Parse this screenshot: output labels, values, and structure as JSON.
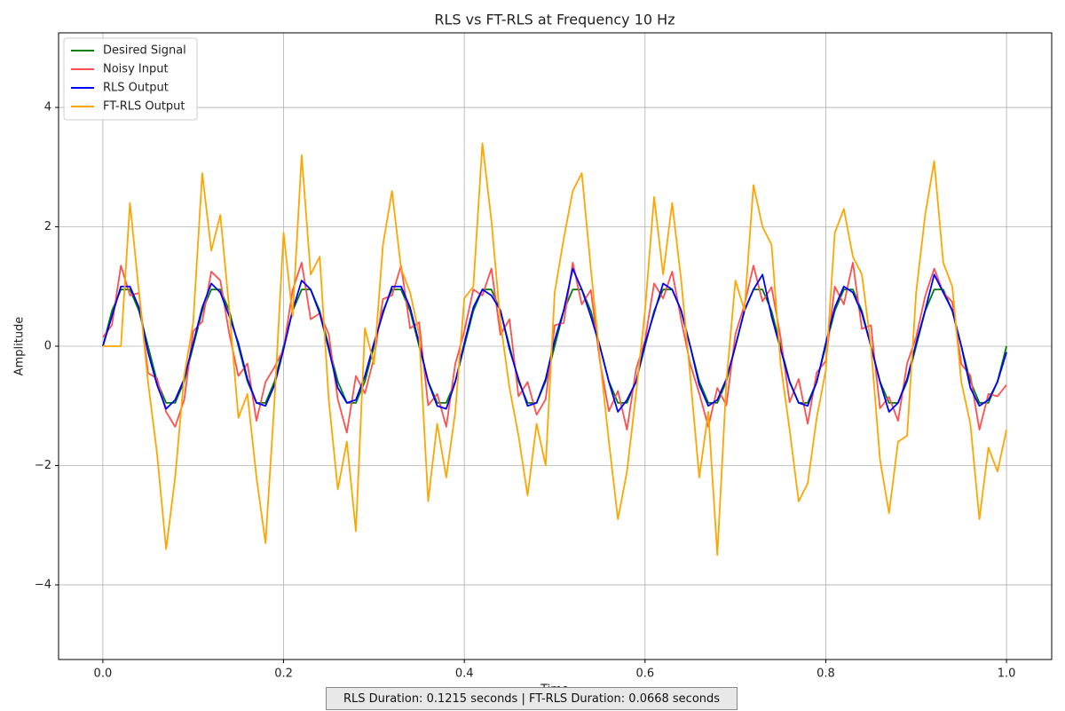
{
  "chart_data": {
    "type": "line",
    "title": "RLS vs FT-RLS at Frequency 10 Hz",
    "x_label": "Time",
    "y_label": "Amplitude",
    "annotation": "RLS Duration: 0.1215 seconds | FT-RLS Duration: 0.0668 seconds",
    "xlim": [
      -0.049,
      1.05
    ],
    "ylim": [
      -5.25,
      5.25
    ],
    "xticks": [
      {
        "value": 0,
        "label": "0.0"
      },
      0.2,
      0.4,
      0.6,
      0.8,
      {
        "value": 1,
        "label": "1.0"
      }
    ],
    "yticks": [
      {
        "value": -4,
        "label": "−4"
      },
      {
        "value": -2,
        "label": "−2"
      },
      0,
      2,
      4
    ],
    "grid": true,
    "legend": "upper left",
    "x": [
      0,
      0.01,
      0.02,
      0.03,
      0.04,
      0.05,
      0.06,
      0.07,
      0.08,
      0.09,
      0.1,
      0.11,
      0.12,
      0.13,
      0.14,
      0.15,
      0.16,
      0.17,
      0.18,
      0.19,
      0.2,
      0.21,
      0.22,
      0.23,
      0.24,
      0.25,
      0.26,
      0.27,
      0.28,
      0.29,
      0.3,
      0.31,
      0.32,
      0.33,
      0.34,
      0.35,
      0.36,
      0.37,
      0.38,
      0.39,
      0.4,
      0.41,
      0.42,
      0.43,
      0.44,
      0.45,
      0.46,
      0.47,
      0.48,
      0.49,
      0.5,
      0.51,
      0.52,
      0.53,
      0.54,
      0.55,
      0.56,
      0.57,
      0.58,
      0.59,
      0.6,
      0.61,
      0.62,
      0.63,
      0.64,
      0.65,
      0.66,
      0.67,
      0.68,
      0.69,
      0.7,
      0.71,
      0.72,
      0.73,
      0.74,
      0.75,
      0.76,
      0.77,
      0.78,
      0.79,
      0.8,
      0.81,
      0.82,
      0.83,
      0.84,
      0.85,
      0.86,
      0.87,
      0.88,
      0.89,
      0.9,
      0.91,
      0.92,
      0.93,
      0.94,
      0.95,
      0.96,
      0.97,
      0.98,
      0.99,
      1
    ],
    "series": [
      {
        "name": "Desired Signal",
        "color": "#008000",
        "values": [
          0,
          0.59,
          0.95,
          0.95,
          0.59,
          0,
          -0.59,
          -0.95,
          -0.95,
          -0.59,
          0,
          0.59,
          0.95,
          0.95,
          0.59,
          0,
          -0.59,
          -0.95,
          -0.95,
          -0.59,
          0,
          0.59,
          0.95,
          0.95,
          0.59,
          0,
          -0.59,
          -0.95,
          -0.95,
          -0.59,
          0,
          0.59,
          0.95,
          0.95,
          0.59,
          0,
          -0.59,
          -0.95,
          -0.95,
          -0.59,
          0,
          0.59,
          0.95,
          0.95,
          0.59,
          0,
          -0.59,
          -0.95,
          -0.95,
          -0.59,
          0,
          0.59,
          0.95,
          0.95,
          0.59,
          0,
          -0.59,
          -0.95,
          -0.95,
          -0.59,
          0,
          0.59,
          0.95,
          0.95,
          0.59,
          0,
          -0.59,
          -0.95,
          -0.95,
          -0.59,
          0,
          0.59,
          0.95,
          0.95,
          0.59,
          0,
          -0.59,
          -0.95,
          -0.95,
          -0.59,
          0,
          0.59,
          0.95,
          0.95,
          0.59,
          0,
          -0.59,
          -0.95,
          -0.95,
          -0.59,
          0,
          0.59,
          0.95,
          0.95,
          0.59,
          0,
          -0.59,
          -0.95,
          -0.95,
          -0.59,
          0
        ]
      },
      {
        "name": "Noisy Input",
        "color": "#ff4f4f",
        "values": [
          0.15,
          0.35,
          1.35,
          0.85,
          0.89,
          -0.45,
          -0.54,
          -1.1,
          -1.35,
          -0.9,
          0.25,
          0.41,
          1.25,
          1.1,
          0.2,
          -0.5,
          -0.29,
          -1.25,
          -0.6,
          -0.35,
          -0.05,
          0.94,
          1.4,
          0.45,
          0.55,
          0.2,
          -0.89,
          -1.45,
          -0.5,
          -0.79,
          -0.2,
          0.79,
          0.85,
          1.35,
          0.3,
          0.4,
          -0.99,
          -0.8,
          -1.35,
          -0.3,
          0.25,
          0.95,
          0.85,
          1.3,
          0.19,
          0.45,
          -0.84,
          -0.6,
          -1.15,
          -0.89,
          0.35,
          0.39,
          1.4,
          0.7,
          0.94,
          -0.25,
          -1.09,
          -0.75,
          -1.4,
          -0.39,
          0.1,
          1.05,
          0.8,
          1.25,
          0.44,
          -0.3,
          -0.79,
          -1.35,
          -0.7,
          -0.99,
          0.2,
          0.69,
          1.35,
          0.75,
          0.99,
          0.15,
          -0.94,
          -0.55,
          -1.3,
          -0.44,
          -0.25,
          1.0,
          0.7,
          1.4,
          0.29,
          0.35,
          -1.04,
          -0.85,
          -1.25,
          -0.29,
          0.15,
          0.84,
          1.3,
          0.9,
          0.74,
          -0.3,
          -0.49,
          -1.4,
          -0.8,
          -0.84,
          -0.65
        ]
      },
      {
        "name": "RLS Output",
        "color": "#0000ff",
        "values": [
          0,
          0.5,
          1.0,
          1.0,
          0.65,
          -0.1,
          -0.65,
          -1.05,
          -0.9,
          -0.55,
          0.05,
          0.65,
          1.05,
          0.9,
          0.5,
          0.05,
          -0.55,
          -0.95,
          -1.0,
          -0.65,
          -0.05,
          0.6,
          1.1,
          0.95,
          0.55,
          -0.05,
          -0.7,
          -0.95,
          -0.9,
          -0.5,
          0.05,
          0.55,
          1.0,
          1.0,
          0.65,
          0.05,
          -0.6,
          -1.0,
          -1.05,
          -0.6,
          0.05,
          0.65,
          0.95,
          0.85,
          0.6,
          -0.05,
          -0.55,
          -1.0,
          -0.95,
          -0.55,
          0.1,
          0.6,
          1.3,
          0.95,
          0.5,
          0,
          -0.6,
          -1.1,
          -0.9,
          -0.6,
          0.05,
          0.55,
          1.05,
          0.95,
          0.6,
          0,
          -0.65,
          -1.0,
          -0.9,
          -0.55,
          0,
          0.6,
          0.95,
          1.2,
          0.5,
          -0.05,
          -0.6,
          -0.95,
          -1.0,
          -0.6,
          0.05,
          0.65,
          1.0,
          0.9,
          0.55,
          0,
          -0.6,
          -1.1,
          -0.95,
          -0.55,
          0.05,
          0.6,
          1.2,
          0.9,
          0.6,
          0,
          -0.7,
          -1.0,
          -0.9,
          -0.6,
          -0.1
        ]
      },
      {
        "name": "FT-RLS Output",
        "color": "#ffa500",
        "values": [
          0,
          0,
          0,
          2.4,
          0.9,
          -0.6,
          -1.8,
          -3.4,
          -2.2,
          -0.5,
          0.4,
          2.9,
          1.6,
          2.2,
          0.6,
          -1.2,
          -0.8,
          -2.2,
          -3.3,
          -0.9,
          1.9,
          0.5,
          3.2,
          1.2,
          1.5,
          -0.9,
          -2.4,
          -1.6,
          -3.1,
          0.3,
          -0.3,
          1.7,
          2.6,
          1.3,
          0.9,
          0.2,
          -2.6,
          -1.3,
          -2.2,
          -1.1,
          0.8,
          1.0,
          3.4,
          2.1,
          0.4,
          -0.7,
          -1.5,
          -2.5,
          -1.3,
          -2.0,
          0.9,
          1.8,
          2.6,
          2.9,
          1.3,
          -0.2,
          -1.6,
          -2.9,
          -2.1,
          -0.8,
          0.6,
          2.5,
          1.2,
          2.4,
          1.1,
          -0.5,
          -2.2,
          -1.1,
          -3.5,
          -0.6,
          1.1,
          0.6,
          2.7,
          2.0,
          1.7,
          -0.3,
          -1.4,
          -2.6,
          -2.3,
          -1.2,
          -0.4,
          1.9,
          2.3,
          1.5,
          1.2,
          0,
          -1.9,
          -2.8,
          -1.6,
          -1.5,
          0.9,
          2.2,
          3.1,
          1.4,
          1.0,
          -0.6,
          -1.3,
          -2.9,
          -1.7,
          -2.1,
          -1.4
        ]
      }
    ]
  }
}
